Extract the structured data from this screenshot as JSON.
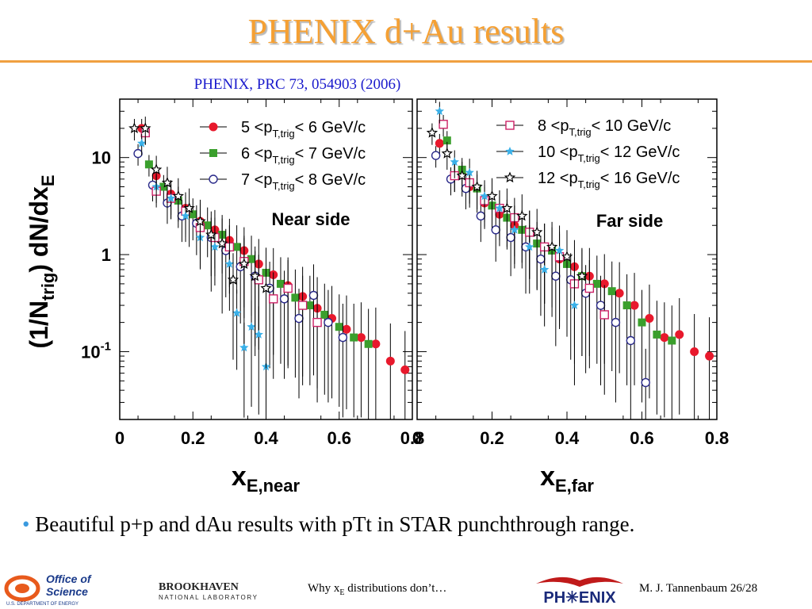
{
  "slide": {
    "title": "PHENIX d+Au results",
    "citation": "PHENIX, PRC 73, 054903 (2006)",
    "bullet": "Beautiful p+p and dAu results with pTt in STAR punchthrough range.",
    "footer_center": "Why x",
    "footer_center_sub": "E",
    "footer_center_tail": " distributions don’t…",
    "footer_right": "M. J. Tannenbaum   26/28",
    "logo_doe": {
      "line1": "Office of",
      "line2": "Science",
      "line3": "U.S. DEPARTMENT OF ENERGY"
    },
    "logo_bnl": {
      "line1": "BROOKHAVEN",
      "line2": "NATIONAL LABORATORY"
    },
    "logo_phenix": "PH✳ENIX"
  },
  "colors": {
    "title": "#f5a033",
    "citation": "#1a1acc",
    "red": "#e8192c",
    "green": "#3a9f2c",
    "navy": "#2a2a8a",
    "pink": "#cc2266",
    "cyan": "#3ab0e8",
    "black": "#000000"
  },
  "chart_data": [
    {
      "type": "scatter",
      "panel_label": "Near side",
      "ylabel": "(1/N",
      "ylabel_sub": "trig",
      "ylabel_tail": ") dN/dx",
      "ylabel_sub2": "E",
      "xlabel": "x",
      "xlabel_sub": "E,near",
      "xlim": [
        0,
        0.8
      ],
      "ylim": [
        0.02,
        40
      ],
      "log_y": true,
      "x_ticks": [
        "0",
        "0.2",
        "0.4",
        "0.6",
        "0.8"
      ],
      "y_ticks": [
        {
          "v": 10,
          "base": "10",
          "exp": ""
        },
        {
          "v": 1,
          "base": "1",
          "exp": ""
        },
        {
          "v": 0.1,
          "base": "10",
          "exp": "-1"
        }
      ],
      "series": [
        {
          "name": "5 <p",
          "name_sub": "T,trig",
          "name_tail": "< 6 GeV/c",
          "marker": "circle-filled",
          "color": "#e8192c",
          "x": [
            0.06,
            0.1,
            0.14,
            0.18,
            0.22,
            0.26,
            0.3,
            0.34,
            0.38,
            0.42,
            0.46,
            0.5,
            0.54,
            0.58,
            0.62,
            0.66,
            0.7,
            0.74,
            0.78
          ],
          "y": [
            20,
            6.5,
            4.2,
            3,
            2.2,
            1.8,
            1.4,
            1.1,
            0.8,
            0.62,
            0.48,
            0.37,
            0.28,
            0.22,
            0.17,
            0.14,
            0.12,
            0.08,
            0.065
          ]
        },
        {
          "name": "6 <p",
          "name_sub": "T,trig",
          "name_tail": "< 7 GeV/c",
          "marker": "square-filled",
          "color": "#3a9f2c",
          "x": [
            0.08,
            0.12,
            0.16,
            0.2,
            0.24,
            0.28,
            0.32,
            0.36,
            0.4,
            0.44,
            0.48,
            0.52,
            0.56,
            0.6,
            0.64,
            0.68
          ],
          "y": [
            8.5,
            5,
            3.6,
            2.6,
            2,
            1.6,
            1.2,
            0.9,
            0.65,
            0.5,
            0.36,
            0.3,
            0.24,
            0.18,
            0.14,
            0.12
          ]
        },
        {
          "name": "7 <p",
          "name_sub": "T,trig",
          "name_tail": "< 8 GeV/c",
          "marker": "circle-open",
          "color": "#2a2a8a",
          "x": [
            0.05,
            0.09,
            0.13,
            0.17,
            0.21,
            0.25,
            0.29,
            0.33,
            0.37,
            0.41,
            0.45,
            0.49,
            0.53,
            0.57,
            0.61
          ],
          "y": [
            11,
            5.2,
            3.4,
            2.5,
            2.1,
            1.5,
            1.1,
            0.75,
            0.6,
            0.45,
            0.35,
            0.22,
            0.38,
            0.2,
            0.14
          ]
        },
        {
          "name": "8 <p",
          "name_sub": "T,trig",
          "name_tail": "< 10 GeV/c",
          "marker": "square-open",
          "color": "#cc2266",
          "x": [
            0.07,
            0.1,
            0.14,
            0.18,
            0.22,
            0.26,
            0.3,
            0.34,
            0.38,
            0.42,
            0.46,
            0.5,
            0.54
          ],
          "y": [
            18,
            4.5,
            3.8,
            2.8,
            1.9,
            1.5,
            1.2,
            0.85,
            0.55,
            0.35,
            0.45,
            0.3,
            0.2
          ]
        },
        {
          "name": "10 <p",
          "name_sub": "T,trig",
          "name_tail": "< 12 GeV/c",
          "marker": "star-filled",
          "color": "#3ab0e8",
          "x": [
            0.06,
            0.1,
            0.14,
            0.18,
            0.22,
            0.26,
            0.3,
            0.32,
            0.34,
            0.36,
            0.38,
            0.4
          ],
          "y": [
            14,
            5,
            3.8,
            2.5,
            1.5,
            1.2,
            0.8,
            0.25,
            0.11,
            0.18,
            0.15,
            0.07
          ]
        },
        {
          "name": "12 <p",
          "name_sub": "T,trig",
          "name_tail": "< 16 GeV/c",
          "marker": "star-open",
          "color": "#000000",
          "x": [
            0.04,
            0.07,
            0.1,
            0.13,
            0.16,
            0.19,
            0.22,
            0.25,
            0.28,
            0.31,
            0.34,
            0.37,
            0.4
          ],
          "y": [
            20,
            20,
            7.5,
            5.5,
            4,
            3,
            2.2,
            1.6,
            1.3,
            0.55,
            0.8,
            0.6,
            0.45
          ]
        }
      ]
    },
    {
      "type": "scatter",
      "panel_label": "Far side",
      "xlabel": "x",
      "xlabel_sub": "E,far",
      "xlim": [
        0,
        0.8
      ],
      "ylim": [
        0.02,
        40
      ],
      "log_y": true,
      "x_ticks": [
        "0",
        "0.2",
        "0.4",
        "0.6",
        "0.8"
      ],
      "series": [
        {
          "name": "5 <p",
          "name_sub": "T,trig",
          "name_tail": "< 6 GeV/c",
          "marker": "circle-filled",
          "color": "#e8192c",
          "x": [
            0.06,
            0.1,
            0.14,
            0.18,
            0.22,
            0.26,
            0.3,
            0.34,
            0.38,
            0.42,
            0.46,
            0.5,
            0.54,
            0.58,
            0.62,
            0.66,
            0.7,
            0.74,
            0.78
          ],
          "y": [
            14,
            6.5,
            5,
            3.4,
            2.6,
            2,
            1.7,
            1.2,
            0.9,
            0.75,
            0.6,
            0.5,
            0.4,
            0.3,
            0.22,
            0.14,
            0.15,
            0.1,
            0.09
          ]
        },
        {
          "name": "6 <p",
          "name_sub": "T,trig",
          "name_tail": "< 7 GeV/c",
          "marker": "square-filled",
          "color": "#3a9f2c",
          "x": [
            0.08,
            0.12,
            0.16,
            0.2,
            0.24,
            0.28,
            0.32,
            0.36,
            0.4,
            0.44,
            0.48,
            0.52,
            0.56,
            0.6,
            0.64,
            0.68
          ],
          "y": [
            15,
            7.5,
            4.8,
            3.2,
            2.4,
            1.8,
            1.3,
            1.1,
            0.8,
            0.6,
            0.5,
            0.42,
            0.3,
            0.2,
            0.15,
            0.13
          ]
        },
        {
          "name": "7 <p",
          "name_sub": "T,trig",
          "name_tail": "< 8 GeV/c",
          "marker": "circle-open",
          "color": "#2a2a8a",
          "x": [
            0.05,
            0.09,
            0.13,
            0.17,
            0.21,
            0.25,
            0.29,
            0.33,
            0.37,
            0.41,
            0.45,
            0.49,
            0.53,
            0.57,
            0.61
          ],
          "y": [
            10.5,
            6,
            4.8,
            2.5,
            1.8,
            1.5,
            1.2,
            0.9,
            0.6,
            0.55,
            0.4,
            0.3,
            0.2,
            0.13,
            0.048
          ]
        },
        {
          "name": "8 <p",
          "name_sub": "T,trig",
          "name_tail": "< 10 GeV/c",
          "marker": "square-open",
          "color": "#cc2266",
          "x": [
            0.07,
            0.1,
            0.14,
            0.18,
            0.22,
            0.26,
            0.3,
            0.34,
            0.38,
            0.42,
            0.46,
            0.5
          ],
          "y": [
            22,
            6.5,
            5.5,
            3.6,
            3,
            2.4,
            1.7,
            1.2,
            0.95,
            0.5,
            0.45,
            0.24
          ]
        },
        {
          "name": "10 <p",
          "name_sub": "T,trig",
          "name_tail": "< 12 GeV/c",
          "marker": "star-filled",
          "color": "#3ab0e8",
          "x": [
            0.06,
            0.1,
            0.14,
            0.18,
            0.22,
            0.26,
            0.3,
            0.34,
            0.38,
            0.42
          ],
          "y": [
            30,
            9,
            7,
            4,
            3,
            1.8,
            1.2,
            0.7,
            1.1,
            0.3
          ]
        },
        {
          "name": "12 <p",
          "name_sub": "T,trig",
          "name_tail": "< 16 GeV/c",
          "marker": "star-open",
          "color": "#000000",
          "x": [
            0.04,
            0.08,
            0.12,
            0.16,
            0.2,
            0.24,
            0.28,
            0.32,
            0.36,
            0.4,
            0.44
          ],
          "y": [
            18,
            11,
            6.5,
            5,
            4,
            3,
            2.5,
            1.7,
            1.2,
            0.95,
            0.6
          ]
        }
      ]
    }
  ]
}
